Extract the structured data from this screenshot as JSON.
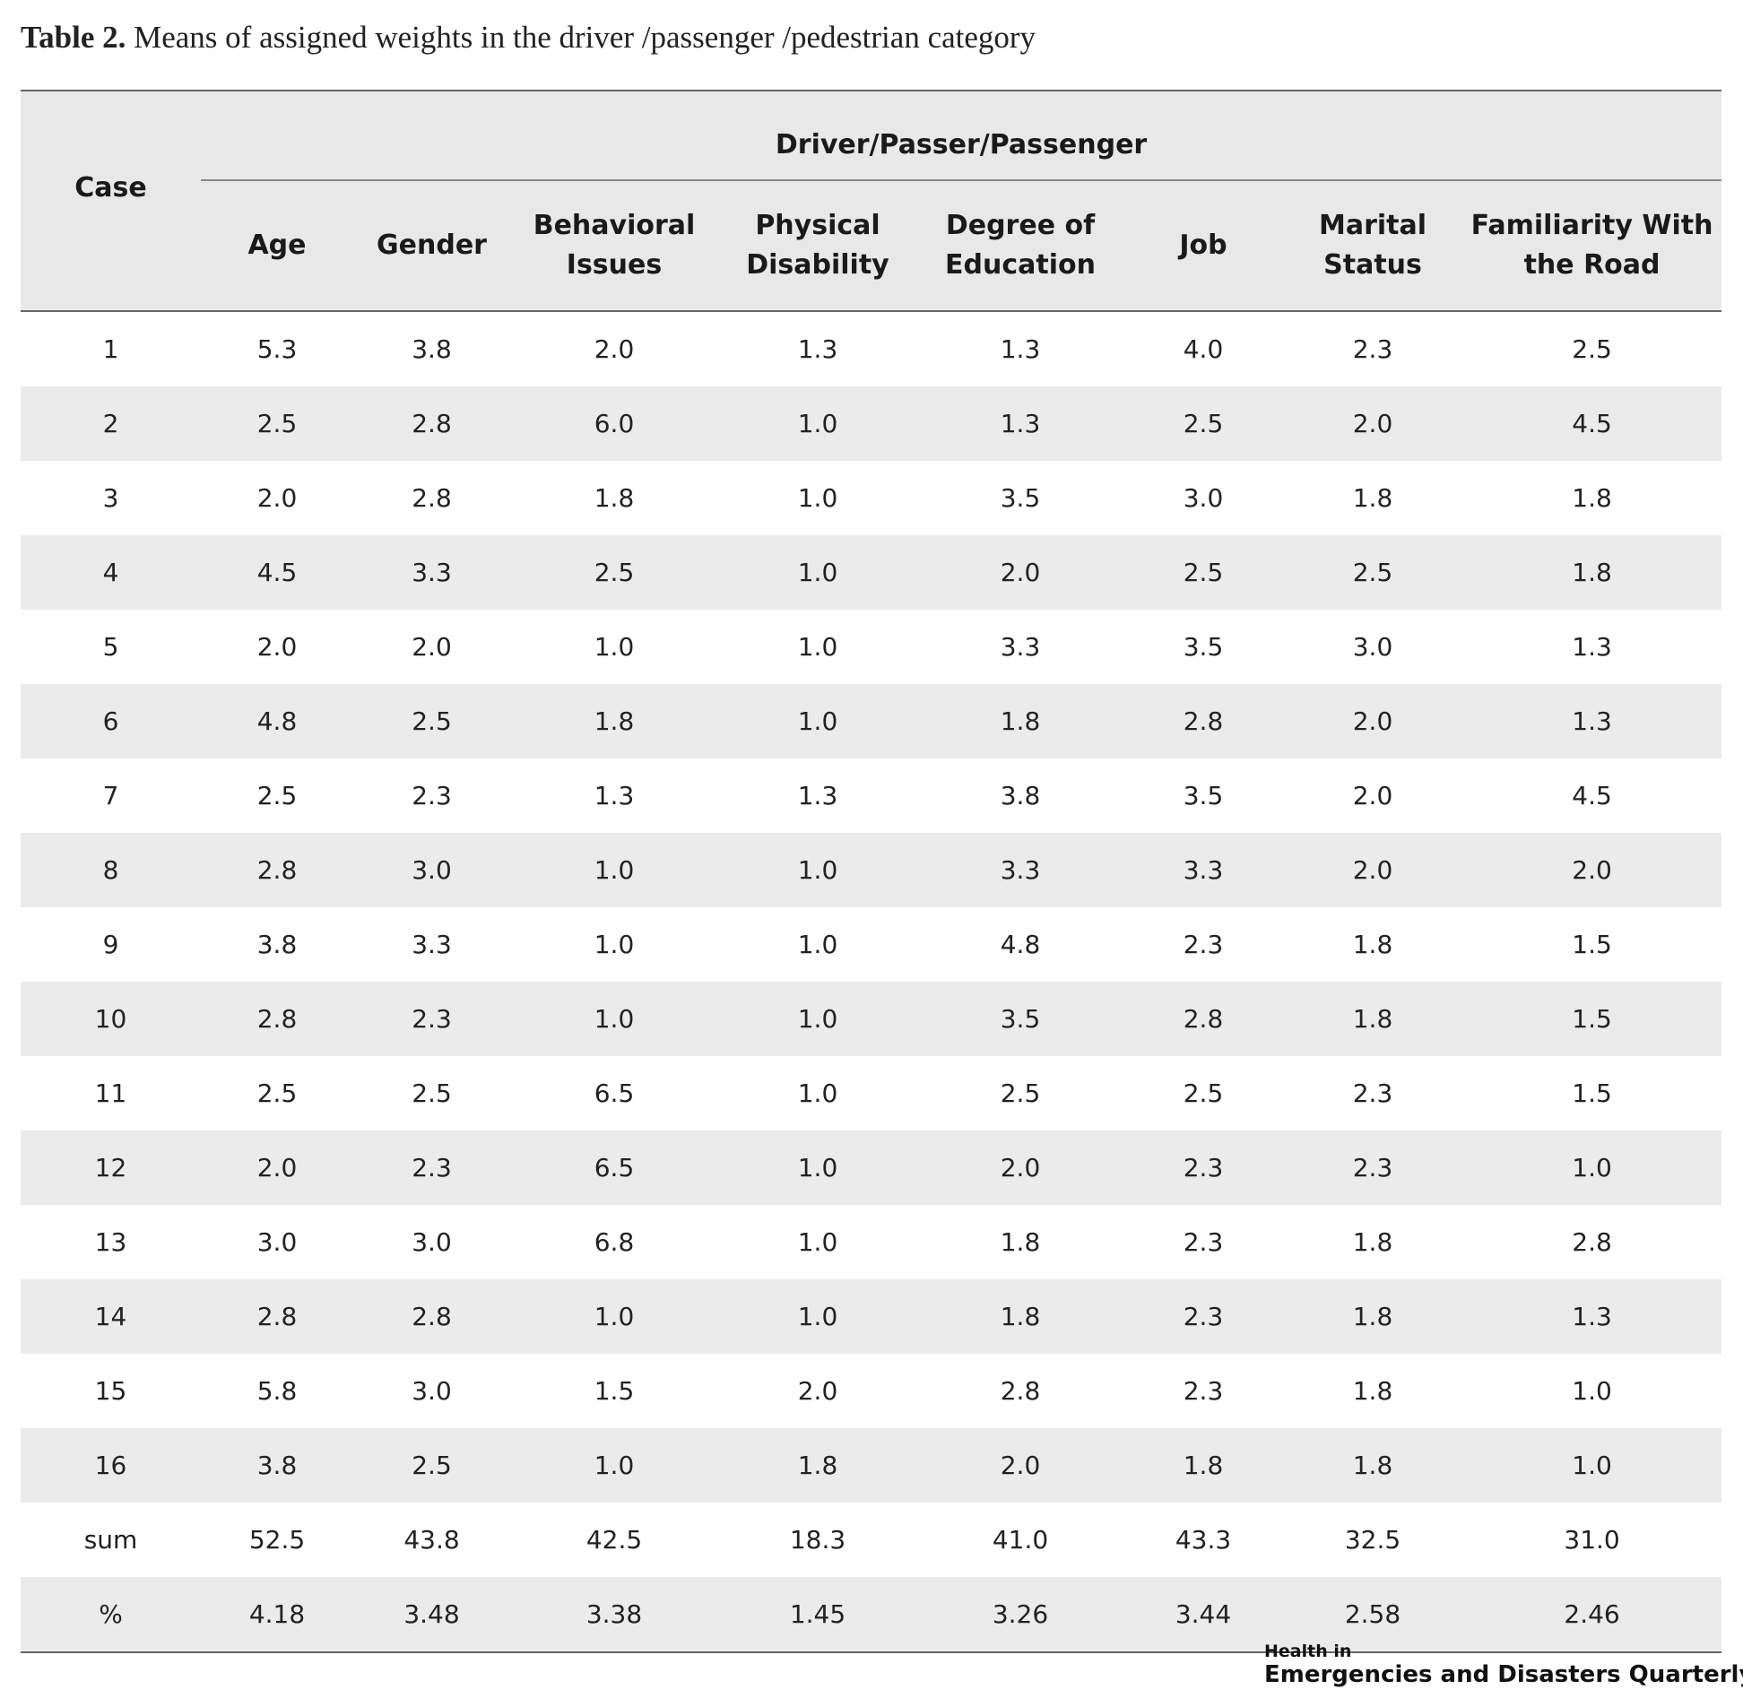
{
  "caption": {
    "label": "Table 2.",
    "text": "Means of assigned weights in the driver /passenger /pedestrian category"
  },
  "table": {
    "case_header": "Case",
    "group_header": "Driver/Passer/Passenger",
    "columns": [
      [
        "Age"
      ],
      [
        "Gender"
      ],
      [
        "Behavioral",
        "Issues"
      ],
      [
        "Physical",
        "Disability"
      ],
      [
        "Degree of",
        "Education"
      ],
      [
        "Job"
      ],
      [
        "Marital",
        "Status"
      ],
      [
        "Familiarity With",
        "the Road"
      ]
    ],
    "rows": [
      [
        "1",
        "5.3",
        "3.8",
        "2.0",
        "1.3",
        "1.3",
        "4.0",
        "2.3",
        "2.5"
      ],
      [
        "2",
        "2.5",
        "2.8",
        "6.0",
        "1.0",
        "1.3",
        "2.5",
        "2.0",
        "4.5"
      ],
      [
        "3",
        "2.0",
        "2.8",
        "1.8",
        "1.0",
        "3.5",
        "3.0",
        "1.8",
        "1.8"
      ],
      [
        "4",
        "4.5",
        "3.3",
        "2.5",
        "1.0",
        "2.0",
        "2.5",
        "2.5",
        "1.8"
      ],
      [
        "5",
        "2.0",
        "2.0",
        "1.0",
        "1.0",
        "3.3",
        "3.5",
        "3.0",
        "1.3"
      ],
      [
        "6",
        "4.8",
        "2.5",
        "1.8",
        "1.0",
        "1.8",
        "2.8",
        "2.0",
        "1.3"
      ],
      [
        "7",
        "2.5",
        "2.3",
        "1.3",
        "1.3",
        "3.8",
        "3.5",
        "2.0",
        "4.5"
      ],
      [
        "8",
        "2.8",
        "3.0",
        "1.0",
        "1.0",
        "3.3",
        "3.3",
        "2.0",
        "2.0"
      ],
      [
        "9",
        "3.8",
        "3.3",
        "1.0",
        "1.0",
        "4.8",
        "2.3",
        "1.8",
        "1.5"
      ],
      [
        "10",
        "2.8",
        "2.3",
        "1.0",
        "1.0",
        "3.5",
        "2.8",
        "1.8",
        "1.5"
      ],
      [
        "11",
        "2.5",
        "2.5",
        "6.5",
        "1.0",
        "2.5",
        "2.5",
        "2.3",
        "1.5"
      ],
      [
        "12",
        "2.0",
        "2.3",
        "6.5",
        "1.0",
        "2.0",
        "2.3",
        "2.3",
        "1.0"
      ],
      [
        "13",
        "3.0",
        "3.0",
        "6.8",
        "1.0",
        "1.8",
        "2.3",
        "1.8",
        "2.8"
      ],
      [
        "14",
        "2.8",
        "2.8",
        "1.0",
        "1.0",
        "1.8",
        "2.3",
        "1.8",
        "1.3"
      ],
      [
        "15",
        "5.8",
        "3.0",
        "1.5",
        "2.0",
        "2.8",
        "2.3",
        "1.8",
        "1.0"
      ],
      [
        "16",
        "3.8",
        "2.5",
        "1.0",
        "1.8",
        "2.0",
        "1.8",
        "1.8",
        "1.0"
      ],
      [
        "sum",
        "52.5",
        "43.8",
        "42.5",
        "18.3",
        "41.0",
        "43.3",
        "32.5",
        "31.0"
      ],
      [
        "%",
        "4.18",
        "3.48",
        "3.38",
        "1.45",
        "3.26",
        "3.44",
        "2.58",
        "2.46"
      ]
    ]
  },
  "journal_logo": {
    "line1": "Health in",
    "line2": "Emergencies and Disasters Quarterly"
  }
}
